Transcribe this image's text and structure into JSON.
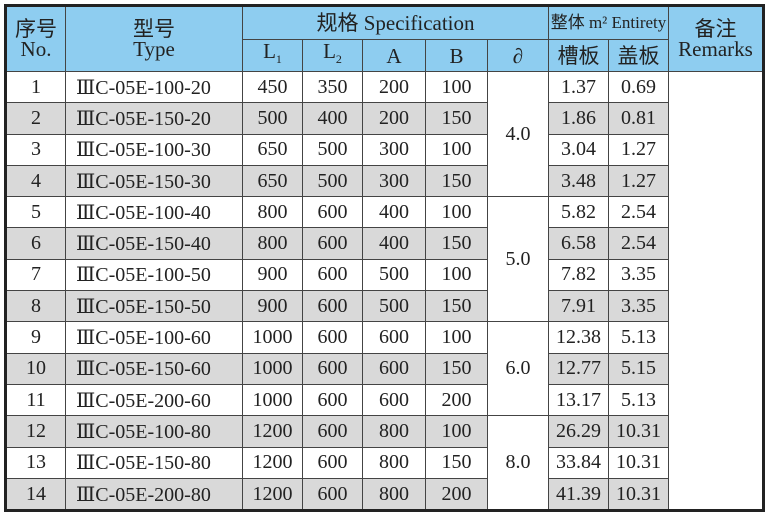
{
  "headers": {
    "no": "序号\nNo.",
    "no_cn": "序号",
    "no_en": "No.",
    "type_cn": "型号",
    "type_en": "Type",
    "spec": "规格 Specification",
    "L1": "L",
    "L1_sub": "1",
    "L2": "L",
    "L2_sub": "2",
    "A": "A",
    "B": "B",
    "delta": "∂",
    "entirety": "整体 m² Entirety",
    "trough": "槽板",
    "cover": "盖板",
    "remarks_cn": "备注",
    "remarks_en": "Remarks"
  },
  "colors": {
    "header_bg": "#8ecdf0",
    "alt_row_bg": "#d9d9d9"
  },
  "delta_groups": [
    {
      "value": "4.0",
      "rows": 4
    },
    {
      "value": "5.0",
      "rows": 4
    },
    {
      "value": "6.0",
      "rows": 3
    },
    {
      "value": "8.0",
      "rows": 3
    }
  ],
  "rows": [
    {
      "no": "1",
      "type": "ⅢC-05E-100-20",
      "L1": "450",
      "L2": "350",
      "A": "200",
      "B": "100",
      "trough": "1.37",
      "cover": "0.69"
    },
    {
      "no": "2",
      "type": "ⅢC-05E-150-20",
      "L1": "500",
      "L2": "400",
      "A": "200",
      "B": "150",
      "trough": "1.86",
      "cover": "0.81"
    },
    {
      "no": "3",
      "type": "ⅢC-05E-100-30",
      "L1": "650",
      "L2": "500",
      "A": "300",
      "B": "100",
      "trough": "3.04",
      "cover": "1.27"
    },
    {
      "no": "4",
      "type": "ⅢC-05E-150-30",
      "L1": "650",
      "L2": "500",
      "A": "300",
      "B": "150",
      "trough": "3.48",
      "cover": "1.27"
    },
    {
      "no": "5",
      "type": "ⅢC-05E-100-40",
      "L1": "800",
      "L2": "600",
      "A": "400",
      "B": "100",
      "trough": "5.82",
      "cover": "2.54"
    },
    {
      "no": "6",
      "type": "ⅢC-05E-150-40",
      "L1": "800",
      "L2": "600",
      "A": "400",
      "B": "150",
      "trough": "6.58",
      "cover": "2.54"
    },
    {
      "no": "7",
      "type": "ⅢC-05E-100-50",
      "L1": "900",
      "L2": "600",
      "A": "500",
      "B": "100",
      "trough": "7.82",
      "cover": "3.35"
    },
    {
      "no": "8",
      "type": "ⅢC-05E-150-50",
      "L1": "900",
      "L2": "600",
      "A": "500",
      "B": "150",
      "trough": "7.91",
      "cover": "3.35"
    },
    {
      "no": "9",
      "type": "ⅢC-05E-100-60",
      "L1": "1000",
      "L2": "600",
      "A": "600",
      "B": "100",
      "trough": "12.38",
      "cover": "5.13"
    },
    {
      "no": "10",
      "type": "ⅢC-05E-150-60",
      "L1": "1000",
      "L2": "600",
      "A": "600",
      "B": "150",
      "trough": "12.77",
      "cover": "5.15"
    },
    {
      "no": "11",
      "type": "ⅢC-05E-200-60",
      "L1": "1000",
      "L2": "600",
      "A": "600",
      "B": "200",
      "trough": "13.17",
      "cover": "5.13"
    },
    {
      "no": "12",
      "type": "ⅢC-05E-100-80",
      "L1": "1200",
      "L2": "600",
      "A": "800",
      "B": "100",
      "trough": "26.29",
      "cover": "10.31"
    },
    {
      "no": "13",
      "type": "ⅢC-05E-150-80",
      "L1": "1200",
      "L2": "600",
      "A": "800",
      "B": "150",
      "trough": "33.84",
      "cover": "10.31"
    },
    {
      "no": "14",
      "type": "ⅢC-05E-200-80",
      "L1": "1200",
      "L2": "600",
      "A": "800",
      "B": "200",
      "trough": "41.39",
      "cover": "10.31"
    }
  ]
}
